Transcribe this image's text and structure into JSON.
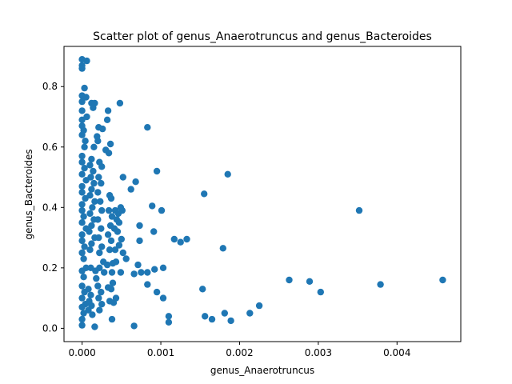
{
  "chart_data": {
    "type": "scatter",
    "title": "Scatter plot of genus_Anaerotruncus and genus_Bacteroides",
    "xlabel": "genus_Anaerotruncus",
    "ylabel": "genus_Bacteroides",
    "xlim": [
      -0.00023,
      0.00481
    ],
    "ylim": [
      -0.044,
      0.933
    ],
    "xticks": [
      {
        "value": 0.0,
        "label": "0.000"
      },
      {
        "value": 0.001,
        "label": "0.001"
      },
      {
        "value": 0.002,
        "label": "0.002"
      },
      {
        "value": 0.003,
        "label": "0.003"
      },
      {
        "value": 0.004,
        "label": "0.004"
      }
    ],
    "yticks": [
      {
        "value": 0.0,
        "label": "0.0"
      },
      {
        "value": 0.2,
        "label": "0.2"
      },
      {
        "value": 0.4,
        "label": "0.4"
      },
      {
        "value": 0.6,
        "label": "0.6"
      },
      {
        "value": 0.8,
        "label": "0.8"
      }
    ],
    "grid": false,
    "marker_color": "#1f77b4",
    "points": [
      [
        0.0,
        0.89
      ],
      [
        6e-05,
        0.885
      ],
      [
        0.0,
        0.87
      ],
      [
        0.0,
        0.86
      ],
      [
        3e-05,
        0.795
      ],
      [
        0.0,
        0.77
      ],
      [
        5e-05,
        0.765
      ],
      [
        0.0,
        0.75
      ],
      [
        0.0,
        0.72
      ],
      [
        0.00012,
        0.745
      ],
      [
        0.00016,
        0.745
      ],
      [
        0.00014,
        0.73
      ],
      [
        0.00048,
        0.745
      ],
      [
        0.00033,
        0.72
      ],
      [
        0.00032,
        0.69
      ],
      [
        6e-05,
        0.7
      ],
      [
        0.0,
        0.69
      ],
      [
        0.0,
        0.67
      ],
      [
        2e-05,
        0.655
      ],
      [
        0.0,
        0.64
      ],
      [
        4e-05,
        0.62
      ],
      [
        3e-05,
        0.6
      ],
      [
        0.00021,
        0.665
      ],
      [
        0.00026,
        0.66
      ],
      [
        0.00019,
        0.635
      ],
      [
        0.0002,
        0.62
      ],
      [
        0.00015,
        0.6
      ],
      [
        0.0003,
        0.59
      ],
      [
        0.00036,
        0.61
      ],
      [
        0.00034,
        0.58
      ],
      [
        0.00083,
        0.665
      ],
      [
        0.00095,
        0.52
      ],
      [
        0.00185,
        0.51
      ],
      [
        0.00052,
        0.5
      ],
      [
        0.00068,
        0.485
      ],
      [
        0.00062,
        0.46
      ],
      [
        0.0,
        0.57
      ],
      [
        0.0,
        0.55
      ],
      [
        3e-05,
        0.53
      ],
      [
        0.0,
        0.51
      ],
      [
        5e-05,
        0.49
      ],
      [
        0.0,
        0.47
      ],
      [
        0.0,
        0.45
      ],
      [
        4e-05,
        0.43
      ],
      [
        0.0,
        0.41
      ],
      [
        0.0,
        0.39
      ],
      [
        2e-05,
        0.37
      ],
      [
        0.0,
        0.35
      ],
      [
        5e-05,
        0.33
      ],
      [
        0.0,
        0.31
      ],
      [
        0.0,
        0.29
      ],
      [
        3e-05,
        0.27
      ],
      [
        0.0,
        0.25
      ],
      [
        2e-05,
        0.23
      ],
      [
        0.00012,
        0.56
      ],
      [
        0.0001,
        0.54
      ],
      [
        0.00014,
        0.52
      ],
      [
        0.00011,
        0.5
      ],
      [
        0.00015,
        0.48
      ],
      [
        0.00012,
        0.46
      ],
      [
        0.0001,
        0.44
      ],
      [
        0.00016,
        0.42
      ],
      [
        0.00013,
        0.4
      ],
      [
        0.0001,
        0.38
      ],
      [
        0.00015,
        0.36
      ],
      [
        0.00012,
        0.34
      ],
      [
        9e-05,
        0.32
      ],
      [
        0.00016,
        0.3
      ],
      [
        0.00012,
        0.28
      ],
      [
        0.0001,
        0.26
      ],
      [
        0.00022,
        0.55
      ],
      [
        0.00025,
        0.535
      ],
      [
        0.00021,
        0.5
      ],
      [
        0.00024,
        0.48
      ],
      [
        0.0002,
        0.45
      ],
      [
        0.00023,
        0.42
      ],
      [
        0.00025,
        0.39
      ],
      [
        0.0002,
        0.36
      ],
      [
        0.00024,
        0.33
      ],
      [
        0.00021,
        0.3
      ],
      [
        0.00025,
        0.27
      ],
      [
        0.00022,
        0.25
      ],
      [
        0.00035,
        0.44
      ],
      [
        0.00037,
        0.43
      ],
      [
        0.00034,
        0.39
      ],
      [
        0.00038,
        0.37
      ],
      [
        0.00036,
        0.34
      ],
      [
        0.00033,
        0.31
      ],
      [
        0.00037,
        0.29
      ],
      [
        0.00035,
        0.26
      ],
      [
        0.00042,
        0.39
      ],
      [
        0.00046,
        0.38
      ],
      [
        0.00044,
        0.36
      ],
      [
        0.00047,
        0.35
      ],
      [
        0.00041,
        0.33
      ],
      [
        0.00045,
        0.32
      ],
      [
        0.00049,
        0.4
      ],
      [
        0.00051,
        0.39
      ],
      [
        0.00073,
        0.34
      ],
      [
        0.00073,
        0.29
      ],
      [
        0.00089,
        0.405
      ],
      [
        0.00101,
        0.39
      ],
      [
        0.00091,
        0.32
      ],
      [
        0.00117,
        0.295
      ],
      [
        0.00125,
        0.285
      ],
      [
        0.00133,
        0.295
      ],
      [
        0.00155,
        0.445
      ],
      [
        0.00179,
        0.265
      ],
      [
        0.00352,
        0.39
      ],
      [
        0.00043,
        0.22
      ],
      [
        0.00047,
        0.275
      ],
      [
        0.0005,
        0.295
      ],
      [
        0.00052,
        0.25
      ],
      [
        0.00056,
        0.23
      ],
      [
        0.00042,
        0.26
      ],
      [
        0.00039,
        0.215
      ],
      [
        0.00032,
        0.21
      ],
      [
        0.00027,
        0.22
      ],
      [
        0.00022,
        0.2
      ],
      [
        0.00017,
        0.19
      ],
      [
        0.00011,
        0.2
      ],
      [
        5e-05,
        0.2
      ],
      [
        0.0,
        0.19
      ],
      [
        2e-05,
        0.17
      ],
      [
        0.00018,
        0.165
      ],
      [
        0.00028,
        0.185
      ],
      [
        0.00038,
        0.185
      ],
      [
        0.00049,
        0.185
      ],
      [
        0.00066,
        0.18
      ],
      [
        0.00071,
        0.21
      ],
      [
        0.00075,
        0.185
      ],
      [
        0.00083,
        0.185
      ],
      [
        0.00083,
        0.145
      ],
      [
        0.00092,
        0.195
      ],
      [
        0.00103,
        0.2
      ],
      [
        0.00095,
        0.12
      ],
      [
        0.00103,
        0.1
      ],
      [
        0.00153,
        0.13
      ],
      [
        0.00263,
        0.16
      ],
      [
        0.00289,
        0.155
      ],
      [
        0.00303,
        0.12
      ],
      [
        0.00379,
        0.145
      ],
      [
        0.00458,
        0.16
      ],
      [
        0.0,
        0.14
      ],
      [
        3e-05,
        0.12
      ],
      [
        0.0,
        0.1
      ],
      [
        4e-05,
        0.08
      ],
      [
        0.0,
        0.07
      ],
      [
        2e-05,
        0.05
      ],
      [
        0.0,
        0.03
      ],
      [
        0.0,
        0.01
      ],
      [
        8e-05,
        0.13
      ],
      [
        0.00011,
        0.11
      ],
      [
        9e-05,
        0.09
      ],
      [
        0.00012,
        0.075
      ],
      [
        8e-05,
        0.06
      ],
      [
        0.00013,
        0.045
      ],
      [
        0.00016,
        0.005
      ],
      [
        0.0002,
        0.14
      ],
      [
        0.00024,
        0.12
      ],
      [
        0.00021,
        0.1
      ],
      [
        0.00025,
        0.08
      ],
      [
        0.00022,
        0.06
      ],
      [
        0.00033,
        0.135
      ],
      [
        0.00037,
        0.13
      ],
      [
        0.00035,
        0.09
      ],
      [
        0.00039,
        0.15
      ],
      [
        0.00043,
        0.1
      ],
      [
        0.0004,
        0.085
      ],
      [
        0.00038,
        0.03
      ],
      [
        0.00066,
        0.008
      ],
      [
        0.0011,
        0.04
      ],
      [
        0.0011,
        0.02
      ],
      [
        0.00156,
        0.04
      ],
      [
        0.00165,
        0.03
      ],
      [
        0.00181,
        0.05
      ],
      [
        0.00189,
        0.025
      ],
      [
        0.00213,
        0.05
      ],
      [
        0.00225,
        0.075
      ]
    ]
  }
}
